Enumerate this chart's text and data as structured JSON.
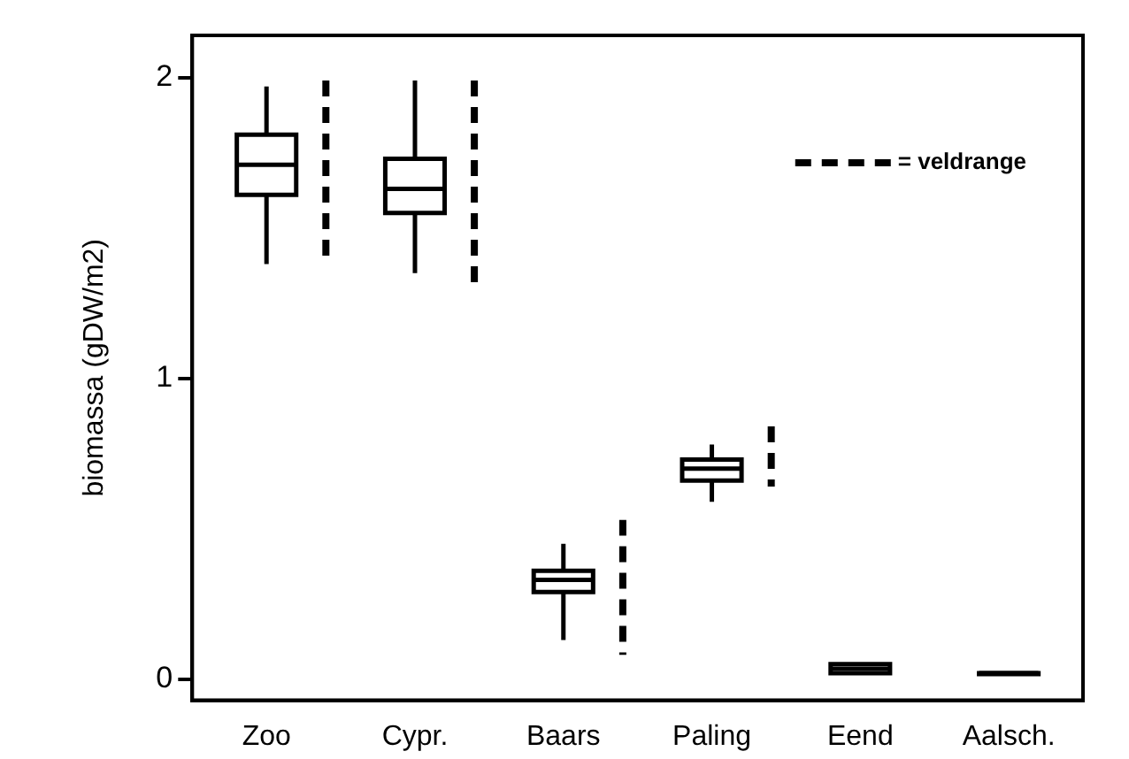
{
  "chart_data": {
    "type": "box",
    "ylabel": "biomassa (gDW/m2)",
    "categories": [
      "Zoo",
      "Cypr.",
      "Baars",
      "Paling",
      "Eend",
      "Aalsch."
    ],
    "ylim": [
      -0.07,
      2.14
    ],
    "yticks": [
      0,
      1,
      2
    ],
    "grid": false,
    "legend": "top right",
    "series": [
      {
        "color": "#000000",
        "boxes": [
          {
            "low": 1.38,
            "q1": 1.61,
            "median": 1.71,
            "q3": 1.81,
            "high": 1.97
          },
          {
            "low": 1.35,
            "q1": 1.55,
            "median": 1.63,
            "q3": 1.73,
            "high": 1.99
          },
          {
            "low": 0.13,
            "q1": 0.29,
            "median": 0.33,
            "q3": 0.36,
            "high": 0.45
          },
          {
            "low": 0.59,
            "q1": 0.66,
            "median": 0.7,
            "q3": 0.73,
            "high": 0.78
          },
          {
            "low": 0.02,
            "q1": 0.02,
            "median": 0.035,
            "q3": 0.05,
            "high": 0.05
          },
          {
            "low": 0.02,
            "q1": 0.02,
            "median": 0.02,
            "q3": 0.02,
            "high": 0.02
          }
        ]
      },
      {
        "type": "bar",
        "name": "= veldrange",
        "color": "#000000",
        "line_style": "dashed",
        "base": [
          1.39,
          1.29,
          0.08,
          0.64,
          null,
          null
        ],
        "values": [
          0.6,
          0.7,
          0.45,
          0.2,
          null,
          null
        ]
      }
    ]
  }
}
